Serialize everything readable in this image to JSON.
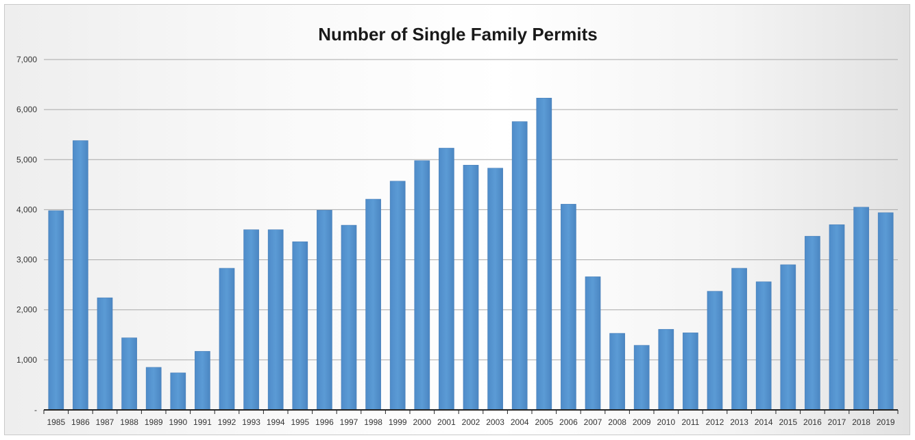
{
  "chart_data": {
    "type": "bar",
    "title": "Number of Single Family Permits",
    "xlabel": "",
    "ylabel": "",
    "categories": [
      "1985",
      "1986",
      "1987",
      "1988",
      "1989",
      "1990",
      "1991",
      "1992",
      "1993",
      "1994",
      "1995",
      "1996",
      "1997",
      "1998",
      "1999",
      "2000",
      "2001",
      "2002",
      "2003",
      "2004",
      "2005",
      "2006",
      "2007",
      "2008",
      "2009",
      "2010",
      "2011",
      "2012",
      "2013",
      "2014",
      "2015",
      "2016",
      "2017",
      "2018",
      "2019"
    ],
    "values": [
      3980,
      5380,
      2240,
      1440,
      850,
      740,
      1170,
      2830,
      3600,
      3600,
      3360,
      3990,
      3690,
      4210,
      4570,
      4980,
      5230,
      4890,
      4830,
      5760,
      6230,
      4110,
      2660,
      1530,
      1290,
      1610,
      1540,
      2370,
      2830,
      2560,
      2900,
      3470,
      3700,
      4050,
      3940
    ],
    "ylim": [
      0,
      7000
    ],
    "yticks": [
      0,
      1000,
      2000,
      3000,
      4000,
      5000,
      6000,
      7000
    ],
    "ytick_labels": [
      "-",
      "1,000",
      "2,000",
      "3,000",
      "4,000",
      "5,000",
      "6,000",
      "7,000"
    ],
    "grid": true,
    "legend": "none",
    "bar_color": "#5b9bd5"
  }
}
